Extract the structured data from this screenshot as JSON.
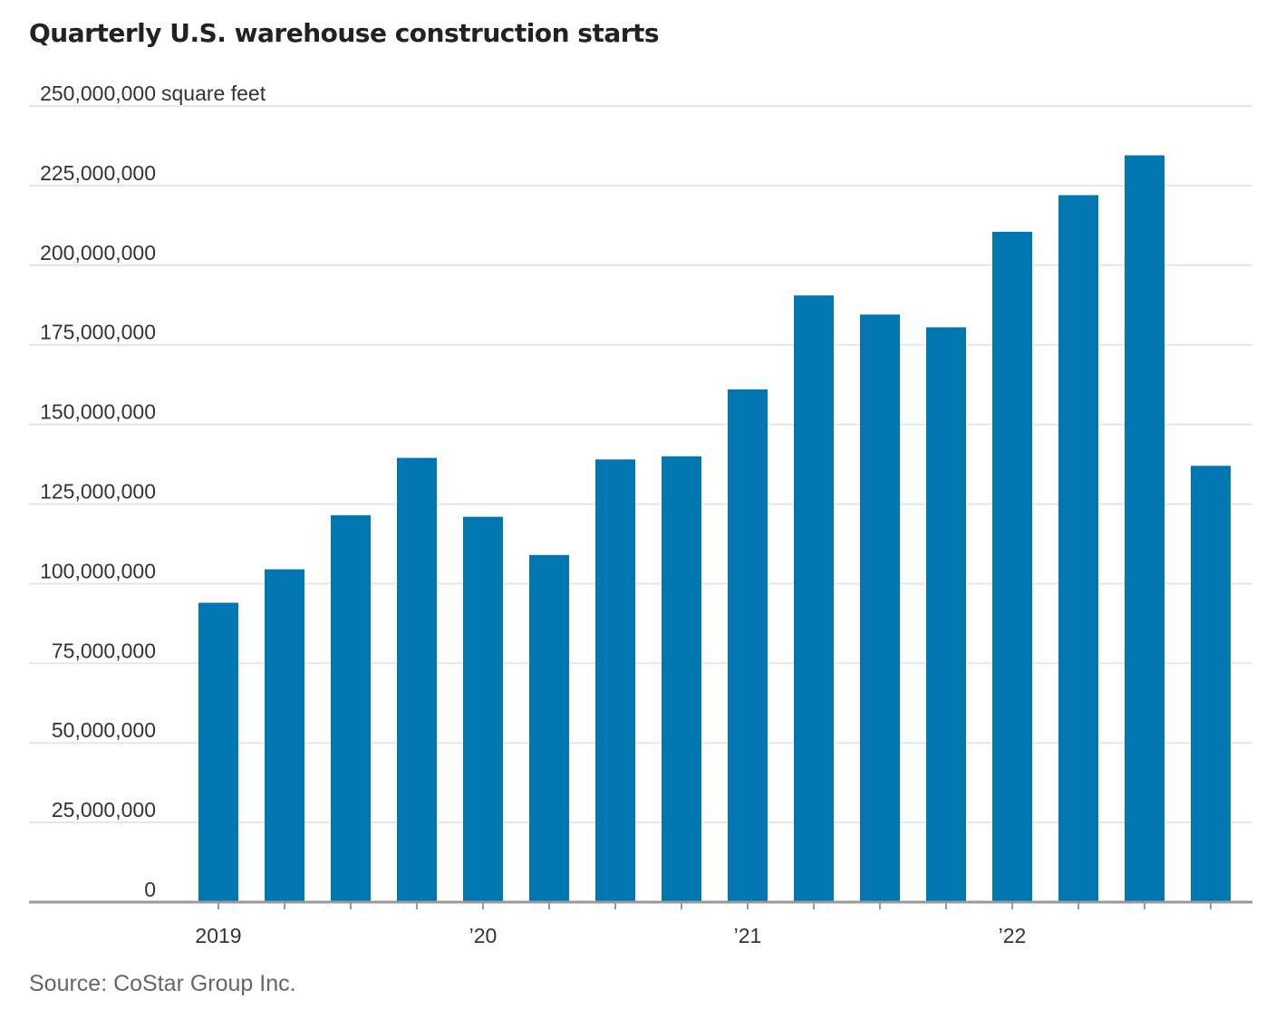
{
  "chart_data": {
    "type": "bar",
    "title": "Quarterly U.S. warehouse construction starts",
    "unit_label": "square feet",
    "source": "Source: CoStar Group Inc.",
    "categories": [
      "2019 Q1",
      "2019 Q2",
      "2019 Q3",
      "2019 Q4",
      "2020 Q1",
      "2020 Q2",
      "2020 Q3",
      "2020 Q4",
      "2021 Q1",
      "2021 Q2",
      "2021 Q3",
      "2021 Q4",
      "2022 Q1",
      "2022 Q2",
      "2022 Q3",
      "2022 Q4"
    ],
    "values": [
      94000000,
      104500000,
      121500000,
      139500000,
      121000000,
      109000000,
      139000000,
      140000000,
      161000000,
      190500000,
      184500000,
      180500000,
      210500000,
      222000000,
      234500000,
      137000000
    ],
    "ylim": [
      0,
      250000000
    ],
    "y_ticks": [
      {
        "value": 0,
        "label": "0"
      },
      {
        "value": 25000000,
        "label": "25,000,000"
      },
      {
        "value": 50000000,
        "label": "50,000,000"
      },
      {
        "value": 75000000,
        "label": "75,000,000"
      },
      {
        "value": 100000000,
        "label": "100,000,000"
      },
      {
        "value": 125000000,
        "label": "125,000,000"
      },
      {
        "value": 150000000,
        "label": "150,000,000"
      },
      {
        "value": 175000000,
        "label": "175,000,000"
      },
      {
        "value": 200000000,
        "label": "200,000,000"
      },
      {
        "value": 225000000,
        "label": "225,000,000"
      },
      {
        "value": 250000000,
        "label": "250,000,000"
      }
    ],
    "x_tick_labels": [
      {
        "index": 0,
        "label": "2019"
      },
      {
        "index": 4,
        "label": "’20"
      },
      {
        "index": 8,
        "label": "’21"
      },
      {
        "index": 12,
        "label": "’22"
      }
    ],
    "bar_color": "#0077b0",
    "grid": true,
    "legend": "none"
  }
}
